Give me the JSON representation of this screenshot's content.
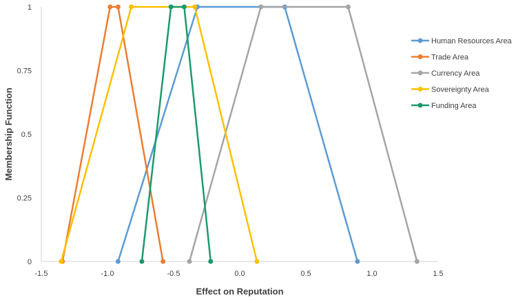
{
  "chart_data": {
    "type": "line",
    "title": "",
    "xlabel": "Effect on Reputation",
    "ylabel": "Membership Function",
    "xlim": [
      -1.5,
      1.5
    ],
    "ylim": [
      0,
      1
    ],
    "x_ticks": [
      -1.5,
      -1.0,
      -0.5,
      0.0,
      0.5,
      1.0,
      1.5
    ],
    "x_tick_labels": [
      "-1.5",
      "-1.0",
      "-0.5",
      "0.0",
      "0.5",
      "1.0",
      "1.5"
    ],
    "y_ticks": [
      0,
      0.25,
      0.5,
      0.75,
      1
    ],
    "y_tick_labels": [
      "0",
      "0.25",
      "0.5",
      "0.75",
      "1"
    ],
    "grid": false,
    "legend_position": "right",
    "series": [
      {
        "name": "Human Resources Area",
        "color": "#5B9BD5",
        "x": [
          -0.92,
          -0.32,
          0.34,
          0.89
        ],
        "y": [
          0,
          1,
          1,
          0
        ]
      },
      {
        "name": "Trade Area",
        "color": "#ED7D31",
        "x": [
          -1.34,
          -0.98,
          -0.92,
          -0.58
        ],
        "y": [
          0,
          1,
          1,
          0
        ]
      },
      {
        "name": "Currency Area",
        "color": "#A5A5A5",
        "x": [
          -0.38,
          0.16,
          0.82,
          1.34
        ],
        "y": [
          0,
          1,
          1,
          0
        ]
      },
      {
        "name": "Sovereignty Area",
        "color": "#FFC000",
        "x": [
          -1.35,
          -0.82,
          -0.34,
          0.13
        ],
        "y": [
          0,
          1,
          1,
          0
        ]
      },
      {
        "name": "Funding Area",
        "color": "#1A9A6C",
        "x": [
          -0.74,
          -0.52,
          -0.42,
          -0.22
        ],
        "y": [
          0,
          1,
          1,
          0
        ]
      }
    ]
  }
}
